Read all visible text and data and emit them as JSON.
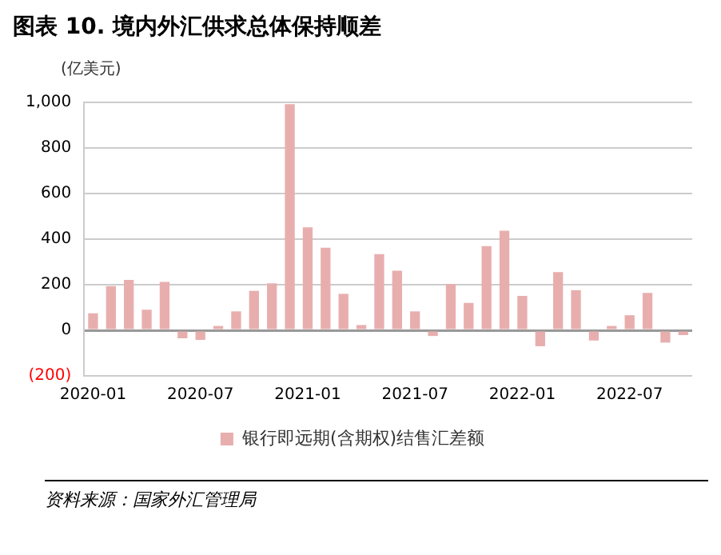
{
  "chart_data": {
    "type": "bar",
    "title": "图表 10. 境内外汇供求总体保持顺差",
    "ylabel": "(亿美元)",
    "categories": [
      "2020-01",
      null,
      null,
      null,
      null,
      null,
      "2020-07",
      null,
      null,
      null,
      null,
      null,
      "2021-01",
      null,
      null,
      null,
      null,
      null,
      "2021-07",
      null,
      null,
      null,
      null,
      null,
      "2022-01",
      null,
      null,
      null,
      null,
      null,
      "2022-07",
      null,
      null,
      null
    ],
    "series": [
      {
        "name": "银行即远期(含期权)结售汇差额",
        "color": "#e8aeae",
        "values": [
          75,
          194,
          221,
          90,
          212,
          -35,
          -42,
          19,
          83,
          173,
          206,
          992,
          452,
          362,
          160,
          23,
          334,
          261,
          83,
          -25,
          203,
          120,
          369,
          437,
          151,
          -70,
          255,
          176,
          -45,
          19,
          66,
          164,
          -54,
          -21
        ]
      }
    ],
    "ylim": [
      -200,
      1000
    ],
    "yticks": [
      {
        "value": -200,
        "label": "(200)"
      },
      0,
      200,
      400,
      600,
      800,
      {
        "value": 1000,
        "label": "1,000"
      }
    ],
    "grid": "y",
    "legend": "bottom",
    "annotations": [
      "资料来源：国家外汇管理局"
    ]
  }
}
